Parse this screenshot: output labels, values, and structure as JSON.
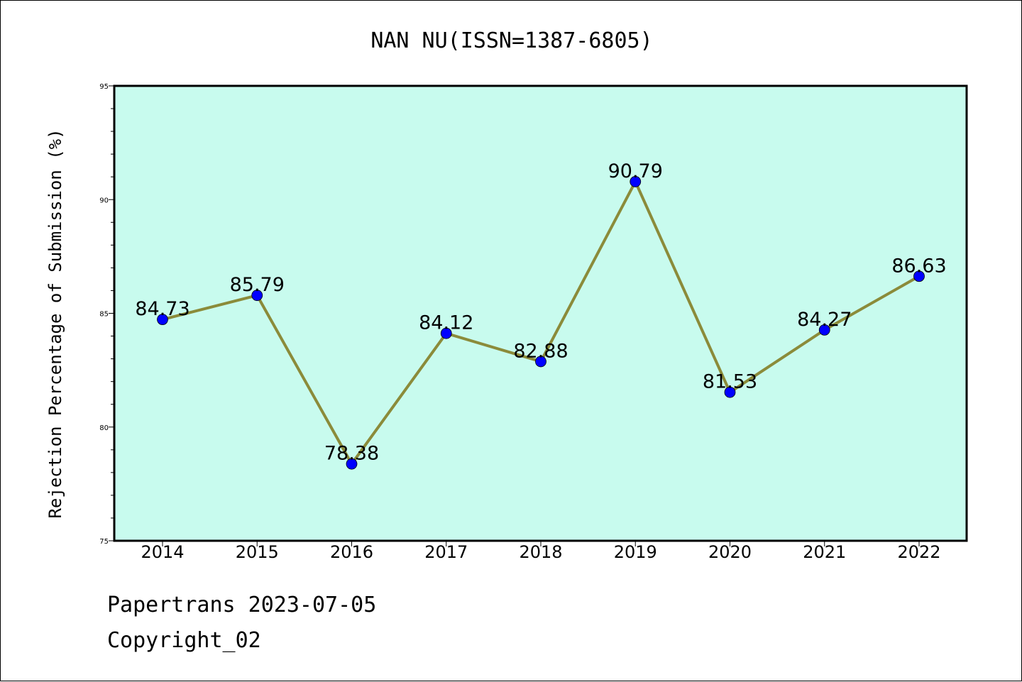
{
  "footer": {
    "line1": "Papertrans 2023-07-05",
    "line2": "Copyright_02"
  },
  "chart_data": {
    "type": "line",
    "title": "NAN NU(ISSN=1387-6805)",
    "xlabel": "",
    "ylabel": "Rejection Percentage of Submission (%)",
    "categories": [
      "2014",
      "2015",
      "2016",
      "2017",
      "2018",
      "2019",
      "2020",
      "2021",
      "2022"
    ],
    "series": [
      {
        "values": [
          84.73,
          85.79,
          78.38,
          84.12,
          82.88,
          90.79,
          81.53,
          84.27,
          86.63
        ],
        "labels": [
          "84.73",
          "85.79",
          "78.38",
          "84.12",
          "82.88",
          "90.79",
          "81.53",
          "84.27",
          "86.63"
        ]
      }
    ],
    "ylim": [
      75,
      95
    ],
    "yticks": [
      "75",
      "80",
      "85",
      "90",
      "95"
    ],
    "grid": false,
    "legend": "none",
    "colors": {
      "plot_background": "#c8fbee",
      "line": "#8b8b3a",
      "marker": "#0000ff"
    }
  }
}
